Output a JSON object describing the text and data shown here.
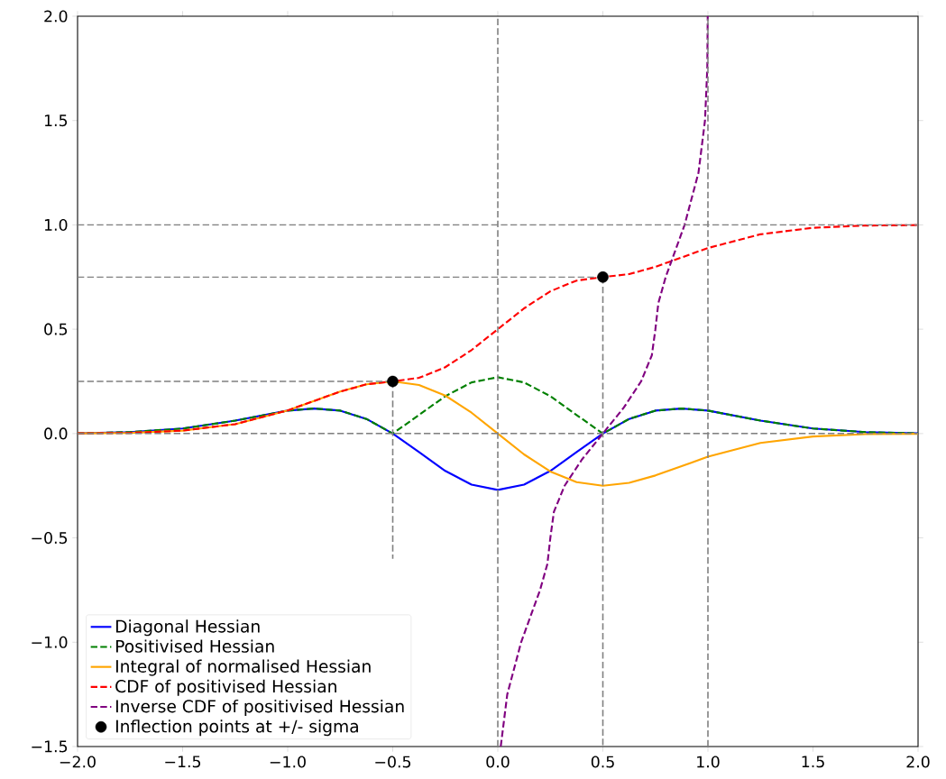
{
  "chart_data": {
    "type": "line",
    "x": [
      -2,
      -1.75,
      -1.5,
      -1.25,
      -1,
      -0.875,
      -0.75,
      -0.625,
      -0.5,
      -0.375,
      -0.25,
      -0.125,
      0,
      0.125,
      0.25,
      0.375,
      0.5,
      0.625,
      0.75,
      0.875,
      1,
      1.25,
      1.5,
      1.75,
      2
    ],
    "xlim": [
      -2,
      2
    ],
    "ylim": [
      -1.5,
      2
    ],
    "xticks": [
      {
        "value": -2,
        "label": "−2.0"
      },
      {
        "value": -1.5,
        "label": "−1.5"
      },
      {
        "value": -1,
        "label": "−1.0"
      },
      {
        "value": -0.5,
        "label": "−0.5"
      },
      {
        "value": 0,
        "label": "0.0"
      },
      {
        "value": 0.5,
        "label": "0.5"
      },
      {
        "value": 1,
        "label": "1.0"
      },
      {
        "value": 1.5,
        "label": "1.5"
      },
      {
        "value": 2,
        "label": "2.0"
      }
    ],
    "yticks": [
      {
        "value": -1.5,
        "label": "−1.5"
      },
      {
        "value": -1,
        "label": "−1.0"
      },
      {
        "value": -0.5,
        "label": "−0.5"
      },
      {
        "value": 0,
        "label": "0.0"
      },
      {
        "value": 0.5,
        "label": "0.5"
      },
      {
        "value": 1,
        "label": "1.0"
      },
      {
        "value": 1.5,
        "label": "1.5"
      },
      {
        "value": 2,
        "label": "2.0"
      }
    ],
    "legend": "bottom left",
    "series": [
      {
        "name": "Diagonal Hessian",
        "color": "#0000ff",
        "line_style": "solid",
        "values": [
          0.001,
          0.007,
          0.024,
          0.062,
          0.11,
          0.12,
          0.11,
          0.07,
          0,
          -0.089,
          -0.179,
          -0.245,
          -0.27,
          -0.245,
          -0.179,
          -0.089,
          0,
          0.07,
          0.11,
          0.12,
          0.11,
          0.062,
          0.024,
          0.007,
          0.001
        ]
      },
      {
        "name": "Positivised Hessian",
        "color": "#008000",
        "line_style": "dashed",
        "values": [
          0.001,
          0.007,
          0.024,
          0.062,
          0.11,
          0.12,
          0.11,
          0.07,
          0,
          0.089,
          0.179,
          0.245,
          0.27,
          0.245,
          0.179,
          0.089,
          0,
          0.07,
          0.11,
          0.12,
          0.11,
          0.062,
          0.024,
          0.007,
          0.001
        ]
      },
      {
        "name": "Integral of normalised Hessian",
        "color": "#ffa500",
        "line_style": "solid",
        "values": [
          0.001,
          0.003,
          0.014,
          0.045,
          0.111,
          0.156,
          0.201,
          0.236,
          0.25,
          0.233,
          0.182,
          0.1,
          0,
          -0.1,
          -0.182,
          -0.233,
          -0.25,
          -0.236,
          -0.201,
          -0.156,
          -0.111,
          -0.045,
          -0.014,
          -0.003,
          -0.001
        ]
      },
      {
        "name": "CDF of positivised Hessian",
        "color": "#ff0000",
        "line_style": "dashed",
        "values": [
          0.001,
          0.003,
          0.014,
          0.045,
          0.111,
          0.156,
          0.201,
          0.236,
          0.25,
          0.267,
          0.318,
          0.4,
          0.5,
          0.6,
          0.682,
          0.733,
          0.75,
          0.764,
          0.799,
          0.844,
          0.889,
          0.955,
          0.986,
          0.997,
          0.999
        ]
      },
      {
        "name": "Inverse CDF of positivised Hessian",
        "color": "#800080",
        "line_style": "dashed",
        "x": [
          0.014,
          0.045,
          0.111,
          0.156,
          0.201,
          0.236,
          0.25,
          0.267,
          0.318,
          0.4,
          0.5,
          0.6,
          0.682,
          0.733,
          0.75,
          0.764,
          0.799,
          0.844,
          0.889,
          0.955,
          0.986,
          0.997,
          0.999
        ],
        "values": [
          -1.5,
          -1.25,
          -1,
          -0.875,
          -0.75,
          -0.625,
          -0.5,
          -0.375,
          -0.25,
          -0.125,
          0,
          0.125,
          0.25,
          0.375,
          0.5,
          0.625,
          0.75,
          0.875,
          1,
          1.25,
          1.5,
          1.75,
          2
        ]
      },
      {
        "name": "Inflection points at +/- sigma",
        "type": "scatter",
        "color": "#000000",
        "x": [
          -0.5,
          0.5
        ],
        "values": [
          0.25,
          0.75
        ]
      },
      {
        "color": "#808080",
        "line_style": "dashed",
        "x": [
          -2,
          -0.5
        ],
        "values": [
          0.25,
          0.25
        ]
      },
      {
        "color": "#808080",
        "line_style": "dashed",
        "x": [
          -0.5,
          -0.5
        ],
        "values": [
          0.25,
          -0.6
        ]
      },
      {
        "color": "#808080",
        "line_style": "dashed",
        "x": [
          -2,
          0.5
        ],
        "values": [
          0.75,
          0.75
        ]
      },
      {
        "color": "#808080",
        "line_style": "dashed",
        "x": [
          0.5,
          0.5
        ],
        "values": [
          0.75,
          -1.5
        ]
      },
      {
        "color": "#808080",
        "line_style": "dashed",
        "x": [
          0,
          0
        ],
        "values": [
          -1.5,
          2
        ]
      },
      {
        "color": "#808080",
        "line_style": "dashed",
        "x": [
          1,
          1
        ],
        "values": [
          -1.5,
          2
        ]
      },
      {
        "color": "#808080",
        "line_style": "dashed",
        "x": [
          -2,
          2
        ],
        "values": [
          0,
          0
        ]
      },
      {
        "color": "#808080",
        "line_style": "dashed",
        "x": [
          -2,
          2
        ],
        "values": [
          1,
          1
        ]
      }
    ]
  }
}
